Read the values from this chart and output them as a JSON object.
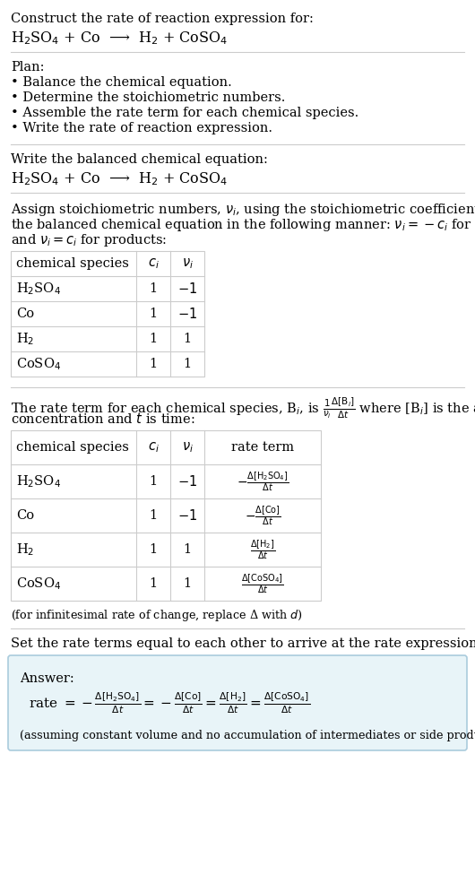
{
  "bg_color": "#ffffff",
  "text_color": "#000000",
  "light_blue_bg": "#e8f4f8",
  "border_color": "#cccccc",
  "title_line1": "Construct the rate of reaction expression for:",
  "reaction_equation": "H$_2$SO$_4$ + Co  ⟶  H$_2$ + CoSO$_4$",
  "plan_title": "Plan:",
  "plan_items": [
    "• Balance the chemical equation.",
    "• Determine the stoichiometric numbers.",
    "• Assemble the rate term for each chemical species.",
    "• Write the rate of reaction expression."
  ],
  "balanced_label": "Write the balanced chemical equation:",
  "balanced_eq": "H$_2$SO$_4$ + Co  ⟶  H$_2$ + CoSO$_4$",
  "stoich_intro_1": "Assign stoichiometric numbers, $\\nu_i$, using the stoichiometric coefficients, $c_i$, from",
  "stoich_intro_2": "the balanced chemical equation in the following manner: $\\nu_i = -c_i$ for reactants",
  "stoich_intro_3": "and $\\nu_i = c_i$ for products:",
  "table1_headers": [
    "chemical species",
    "$c_i$",
    "$\\nu_i$"
  ],
  "table1_rows": [
    [
      "H$_2$SO$_4$",
      "1",
      "$-1$"
    ],
    [
      "Co",
      "1",
      "$-1$"
    ],
    [
      "H$_2$",
      "1",
      "1"
    ],
    [
      "CoSO$_4$",
      "1",
      "1"
    ]
  ],
  "rate_term_intro_1": "The rate term for each chemical species, B$_i$, is $\\frac{1}{\\nu_i}\\frac{\\Delta[\\mathrm{B}_i]}{\\Delta t}$ where [B$_i$] is the amount",
  "rate_term_intro_2": "concentration and $t$ is time:",
  "table2_headers": [
    "chemical species",
    "$c_i$",
    "$\\nu_i$",
    "rate term"
  ],
  "table2_rows": [
    [
      "H$_2$SO$_4$",
      "1",
      "$-1$",
      "$-\\frac{\\Delta[\\mathrm{H_2SO_4}]}{\\Delta t}$"
    ],
    [
      "Co",
      "1",
      "$-1$",
      "$-\\frac{\\Delta[\\mathrm{Co}]}{\\Delta t}$"
    ],
    [
      "H$_2$",
      "1",
      "1",
      "$\\frac{\\Delta[\\mathrm{H_2}]}{\\Delta t}$"
    ],
    [
      "CoSO$_4$",
      "1",
      "1",
      "$\\frac{\\Delta[\\mathrm{CoSO_4}]}{\\Delta t}$"
    ]
  ],
  "infinitesimal_note": "(for infinitesimal rate of change, replace Δ with $d$)",
  "set_equal_label": "Set the rate terms equal to each other to arrive at the rate expression:",
  "answer_label": "Answer:",
  "rate_expression": "rate $= -\\frac{\\Delta[\\mathrm{H_2SO_4}]}{\\Delta t} = -\\frac{\\Delta[\\mathrm{Co}]}{\\Delta t} = \\frac{\\Delta[\\mathrm{H_2}]}{\\Delta t} = \\frac{\\Delta[\\mathrm{CoSO_4}]}{\\Delta t}$",
  "assuming_note": "(assuming constant volume and no accumulation of intermediates or side products)"
}
